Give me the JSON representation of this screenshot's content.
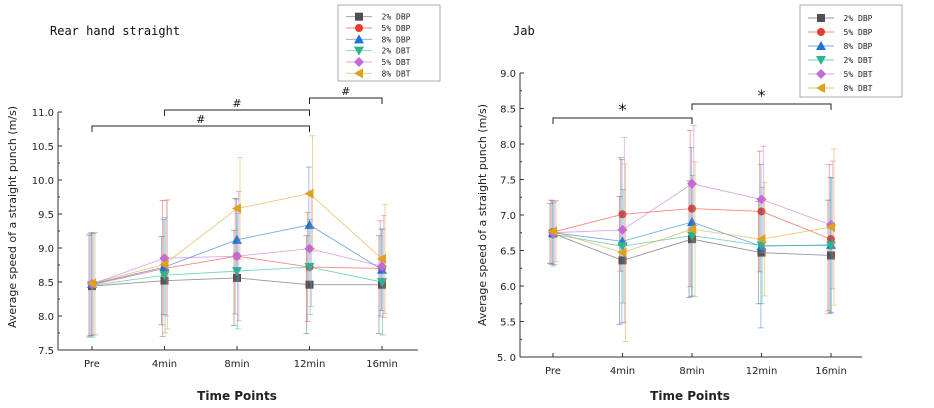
{
  "chart_data": [
    {
      "type": "line",
      "title": "Rear hand straight",
      "xlabel": "Time Points",
      "ylabel": "Average speed of a straight punch (m/s)",
      "categories": [
        "Pre",
        "4min",
        "8min",
        "12min",
        "16min"
      ],
      "ylim": [
        7.5,
        11.0
      ],
      "yticks": [
        "7.5",
        "8.0",
        "8.5",
        "9.0",
        "9.5",
        "10.0",
        "10.5",
        "11.0"
      ],
      "error_bars": true,
      "legend": "top-right",
      "series": [
        {
          "name": "2% DBP",
          "color": "#505050",
          "marker": "square",
          "values": [
            8.44,
            8.52,
            8.56,
            8.46,
            8.46
          ],
          "err": [
            0.75,
            0.65,
            0.7,
            0.72,
            0.72
          ]
        },
        {
          "name": "5% DBP",
          "color": "#e83a2e",
          "marker": "circle",
          "values": [
            8.46,
            8.7,
            8.88,
            8.72,
            8.7
          ],
          "err": [
            0.75,
            1.0,
            0.85,
            0.8,
            0.7
          ]
        },
        {
          "name": "8% DBP",
          "color": "#1f73d6",
          "marker": "triangle-up",
          "values": [
            8.47,
            8.72,
            9.12,
            9.34,
            8.68
          ],
          "err": [
            0.76,
            0.7,
            0.6,
            0.85,
            0.6
          ]
        },
        {
          "name": "2% DBT",
          "color": "#26b58f",
          "marker": "triangle-down",
          "values": [
            8.45,
            8.6,
            8.66,
            8.72,
            8.5
          ],
          "err": [
            0.76,
            0.85,
            0.85,
            0.7,
            0.78
          ]
        },
        {
          "name": "5% DBT",
          "color": "#c46ad8",
          "marker": "diamond",
          "values": [
            8.47,
            8.85,
            8.88,
            8.99,
            8.73
          ],
          "err": [
            0.75,
            0.85,
            0.95,
            0.85,
            0.75
          ]
        },
        {
          "name": "8% DBT",
          "color": "#e0a020",
          "marker": "triangle-left",
          "values": [
            8.48,
            8.76,
            9.58,
            9.8,
            8.84
          ],
          "err": [
            0.75,
            0.95,
            0.75,
            0.85,
            0.8
          ]
        }
      ],
      "significance": [
        {
          "from": "Pre",
          "to": "12min",
          "label": "#"
        },
        {
          "from": "4min",
          "to": "12min",
          "label": "#"
        },
        {
          "from": "12min",
          "to": "16min",
          "label": "#"
        }
      ]
    },
    {
      "type": "line",
      "title": "Jab",
      "xlabel": "Time Points",
      "ylabel": "Average speed of a straight punch (m/s)",
      "categories": [
        "Pre",
        "4min",
        "8min",
        "12min",
        "16min"
      ],
      "ylim": [
        5.0,
        9.0
      ],
      "yticks": [
        "5. 0",
        "5.5",
        "6.0",
        "6.5",
        "7.0",
        "7.5",
        "8.0",
        "8.5",
        "9.0"
      ],
      "error_bars": true,
      "legend": "top-right",
      "series": [
        {
          "name": "2% DBP",
          "color": "#505050",
          "marker": "square",
          "values": [
            6.74,
            6.36,
            6.66,
            6.47,
            6.43
          ],
          "err": [
            0.42,
            0.9,
            0.82,
            0.72,
            0.78
          ]
        },
        {
          "name": "5% DBP",
          "color": "#e83a2e",
          "marker": "circle",
          "values": [
            6.76,
            7.01,
            7.09,
            7.05,
            6.66
          ],
          "err": [
            0.45,
            0.8,
            1.1,
            0.85,
            1.05
          ]
        },
        {
          "name": "8% DBP",
          "color": "#1f73d6",
          "marker": "triangle-up",
          "values": [
            6.75,
            6.63,
            6.9,
            6.56,
            6.58
          ],
          "err": [
            0.45,
            1.15,
            1.05,
            1.15,
            0.95
          ]
        },
        {
          "name": "2% DBT",
          "color": "#26b58f",
          "marker": "triangle-down",
          "values": [
            6.73,
            6.56,
            6.71,
            6.57,
            6.57
          ],
          "err": [
            0.45,
            0.8,
            0.85,
            0.82,
            0.95
          ]
        },
        {
          "name": "5% DBT",
          "color": "#c46ad8",
          "marker": "diamond",
          "values": [
            6.75,
            6.79,
            7.44,
            7.22,
            6.86
          ],
          "err": [
            0.45,
            1.3,
            0.82,
            0.75,
            0.9
          ]
        },
        {
          "name": "8% DBT",
          "color": "#e0a020",
          "marker": "triangle-left",
          "values": [
            6.77,
            6.47,
            6.8,
            6.66,
            6.83
          ],
          "err": [
            0.43,
            1.25,
            0.95,
            0.8,
            1.1
          ]
        }
      ],
      "significance": [
        {
          "from": "Pre",
          "to": "8min",
          "label": "*"
        },
        {
          "from": "8min",
          "to": "16min",
          "label": "*"
        }
      ]
    }
  ]
}
